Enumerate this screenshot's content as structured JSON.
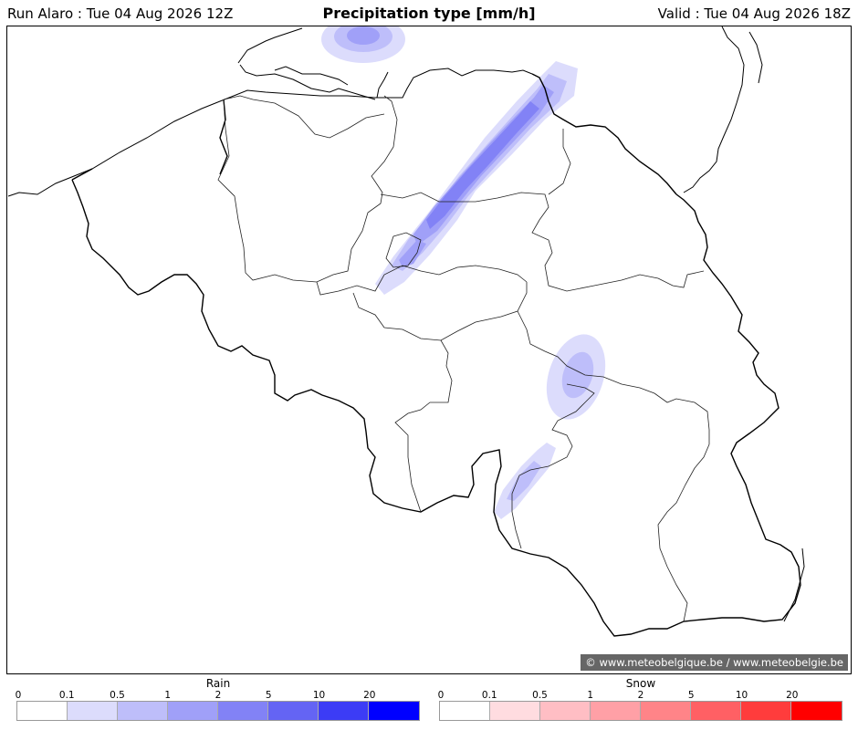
{
  "header": {
    "run_label": "Run Alaro : Tue 04 Aug 2026 12Z",
    "title": "Precipitation type [mm/h]",
    "valid_label": "Valid : Tue 04 Aug 2026 18Z"
  },
  "map": {
    "region": "Belgium",
    "credit": "© www.meteobelgique.be / www.meteobelgie.be",
    "precipitation_areas": [
      {
        "name": "north-sea-coast-band",
        "type": "rain",
        "peak_intensity": "2-5"
      },
      {
        "name": "antwerp-limburg-band",
        "type": "rain",
        "peak_intensity": "2-5"
      },
      {
        "name": "ardennes-cell",
        "type": "rain",
        "peak_intensity": "1-2"
      },
      {
        "name": "south-cell",
        "type": "rain",
        "peak_intensity": "0.5-1"
      }
    ]
  },
  "legend": {
    "rain": {
      "title": "Rain",
      "ticks": [
        "0",
        "0.1",
        "0.5",
        "1",
        "2",
        "5",
        "10",
        "20"
      ],
      "colors": [
        "#ffffff",
        "#dcdcfc",
        "#bebefa",
        "#a0a0f8",
        "#8282f6",
        "#6464f4",
        "#3c3cf6",
        "#0000ff"
      ]
    },
    "snow": {
      "title": "Snow",
      "ticks": [
        "0",
        "0.1",
        "0.5",
        "1",
        "2",
        "5",
        "10",
        "20"
      ],
      "colors": [
        "#ffffff",
        "#ffdce0",
        "#ffbec4",
        "#ffa0a6",
        "#ff8488",
        "#ff6064",
        "#ff3c3c",
        "#ff0000"
      ]
    }
  }
}
